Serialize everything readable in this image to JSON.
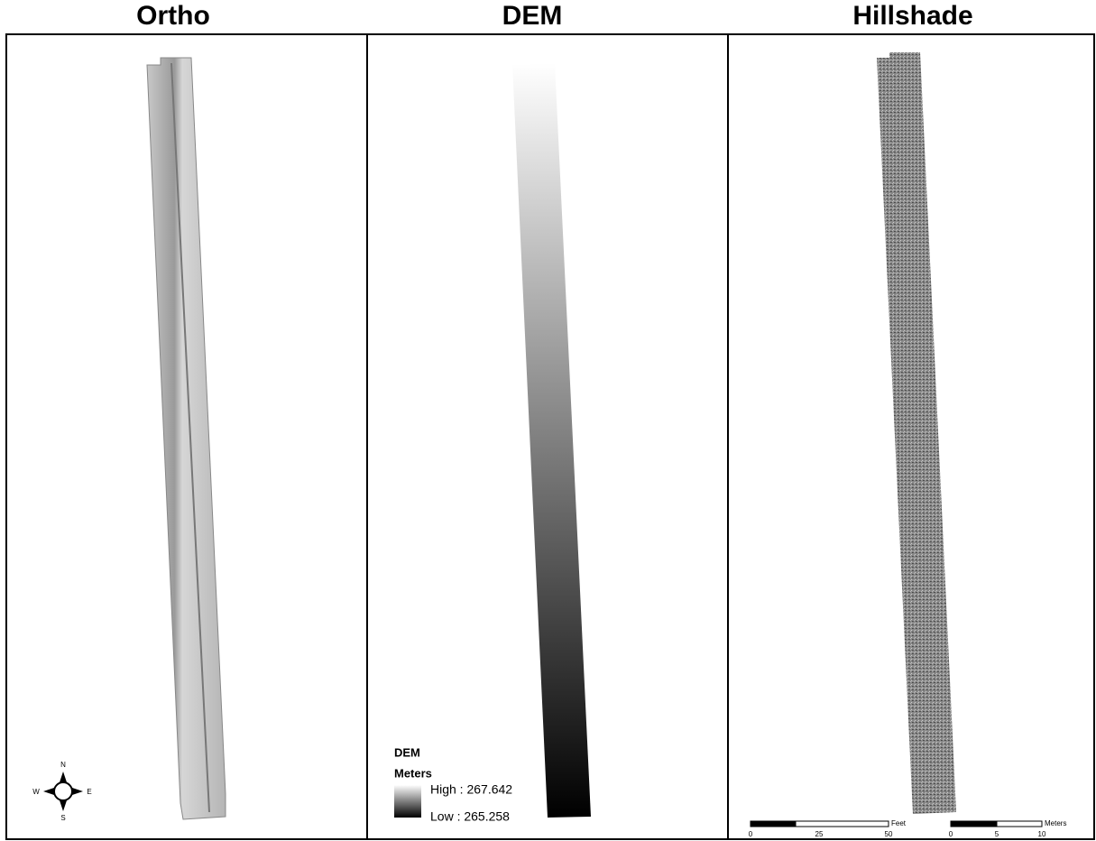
{
  "panels": [
    {
      "title": "Ortho"
    },
    {
      "title": "DEM"
    },
    {
      "title": "Hillshade"
    }
  ],
  "compass": {
    "n": "N",
    "s": "S",
    "e": "E",
    "w": "W"
  },
  "legend": {
    "title": "DEM",
    "unit": "Meters",
    "high": "High : 267.642",
    "low": "Low : 265.258"
  },
  "scale_bars": [
    {
      "unit": "Feet",
      "labels": [
        "0",
        "25",
        "50"
      ]
    },
    {
      "unit": "Meters",
      "labels": [
        "0",
        "5",
        "10"
      ]
    }
  ]
}
